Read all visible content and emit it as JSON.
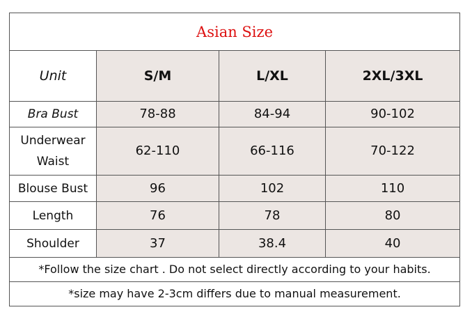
{
  "header": {
    "title": "Asian Size"
  },
  "table": {
    "columns": [
      "Unit",
      "S/M",
      "L/XL",
      "2XL/3XL"
    ],
    "rows": [
      [
        "Bra Bust",
        "78-88",
        "84-94",
        "90-102"
      ],
      [
        "Underwear Waist",
        "62-110",
        "66-116",
        "70-122"
      ],
      [
        "Blouse Bust",
        "96",
        "102",
        "110"
      ],
      [
        "Length",
        "76",
        "78",
        "80"
      ],
      [
        "Shoulder",
        "37",
        "38.4",
        "40"
      ]
    ]
  },
  "notes": [
    "*Follow the size chart . Do not select directly according to your habits.",
    "*size may have 2-3cm differs due to manual measurement."
  ]
}
